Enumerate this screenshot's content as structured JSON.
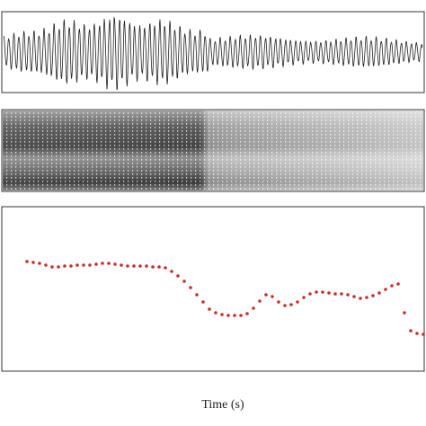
{
  "x_label": "Time (s)"
}
